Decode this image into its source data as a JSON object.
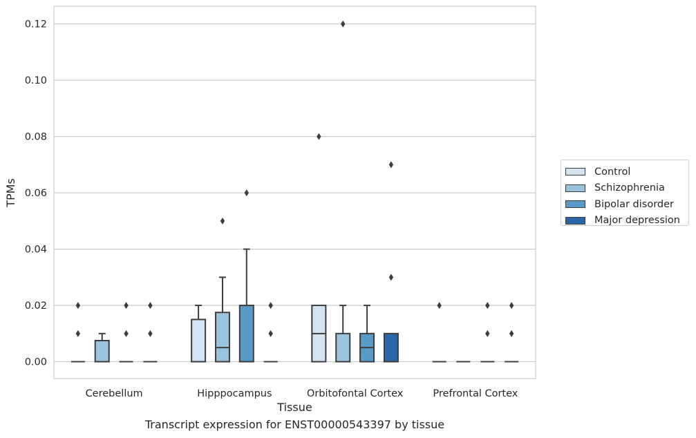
{
  "chart_data": {
    "type": "box",
    "title": "",
    "xlabel": "Tissue",
    "ylabel": "TPMs",
    "ylim": [
      -0.006,
      0.1263
    ],
    "yticks": [
      "0.00",
      "0.02",
      "0.04",
      "0.06",
      "0.08",
      "0.10",
      "0.12"
    ],
    "grid": true,
    "legend_position": "right",
    "categories": [
      "Cerebellum",
      "Hipppocampus",
      "Orbitofontal Cortex",
      "Prefrontal Cortex"
    ],
    "series": [
      {
        "name": "Control",
        "color": "#d4e4f2",
        "boxes": [
          {
            "q1": 0,
            "median": 0,
            "q3": 0,
            "whisker_low": 0,
            "whisker_high": 0,
            "outliers": [
              0.01,
              0.02
            ]
          },
          {
            "q1": 0,
            "median": 0,
            "q3": 0.015,
            "whisker_low": 0,
            "whisker_high": 0.02,
            "outliers": []
          },
          {
            "q1": 0,
            "median": 0.01,
            "q3": 0.02,
            "whisker_low": 0,
            "whisker_high": 0.02,
            "outliers": [
              0.08
            ]
          },
          {
            "q1": 0,
            "median": 0,
            "q3": 0,
            "whisker_low": 0,
            "whisker_high": 0,
            "outliers": [
              0.02
            ]
          }
        ]
      },
      {
        "name": "Schizophrenia",
        "color": "#9ac4dd",
        "boxes": [
          {
            "q1": 0,
            "median": 0,
            "q3": 0.0075,
            "whisker_low": 0,
            "whisker_high": 0.01,
            "outliers": []
          },
          {
            "q1": 0,
            "median": 0.005,
            "q3": 0.0175,
            "whisker_low": 0,
            "whisker_high": 0.03,
            "outliers": [
              0.05
            ]
          },
          {
            "q1": 0,
            "median": 0,
            "q3": 0.01,
            "whisker_low": 0,
            "whisker_high": 0.02,
            "outliers": [
              0.12
            ]
          },
          {
            "q1": 0,
            "median": 0,
            "q3": 0,
            "whisker_low": 0,
            "whisker_high": 0,
            "outliers": []
          }
        ]
      },
      {
        "name": "Bipolar disorder",
        "color": "#5a9ac7",
        "boxes": [
          {
            "q1": 0,
            "median": 0,
            "q3": 0,
            "whisker_low": 0,
            "whisker_high": 0,
            "outliers": [
              0.01,
              0.02
            ]
          },
          {
            "q1": 0,
            "median": 0,
            "q3": 0.02,
            "whisker_low": 0,
            "whisker_high": 0.04,
            "outliers": [
              0.06
            ]
          },
          {
            "q1": 0,
            "median": 0.005,
            "q3": 0.01,
            "whisker_low": 0,
            "whisker_high": 0.02,
            "outliers": []
          },
          {
            "q1": 0,
            "median": 0,
            "q3": 0,
            "whisker_low": 0,
            "whisker_high": 0,
            "outliers": [
              0.01,
              0.02
            ]
          }
        ]
      },
      {
        "name": "Major depression",
        "color": "#2967a8",
        "boxes": [
          {
            "q1": 0,
            "median": 0,
            "q3": 0,
            "whisker_low": 0,
            "whisker_high": 0,
            "outliers": [
              0.01,
              0.02
            ]
          },
          {
            "q1": 0,
            "median": 0,
            "q3": 0,
            "whisker_low": 0,
            "whisker_high": 0,
            "outliers": [
              0.01,
              0.02
            ]
          },
          {
            "q1": 0,
            "median": 0,
            "q3": 0.01,
            "whisker_low": 0,
            "whisker_high": 0.01,
            "outliers": [
              0.03,
              0.07
            ]
          },
          {
            "q1": 0,
            "median": 0,
            "q3": 0,
            "whisker_low": 0,
            "whisker_high": 0,
            "outliers": [
              0.01,
              0.02
            ]
          }
        ]
      }
    ]
  },
  "caption": "Transcript expression for ENST00000543397 by tissue"
}
